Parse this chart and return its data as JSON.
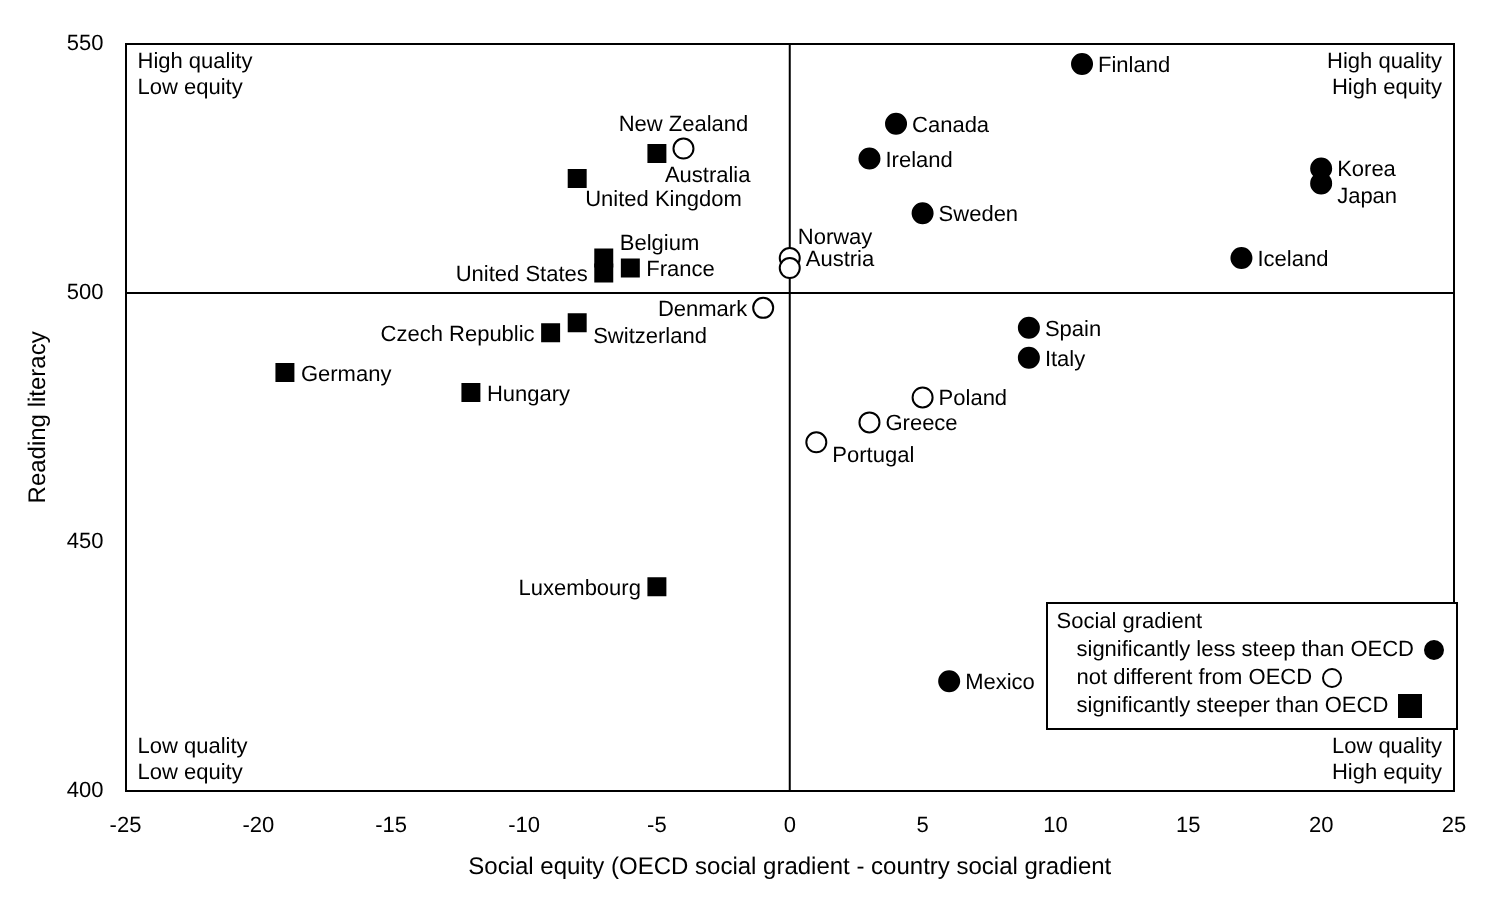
{
  "chart_data": {
    "type": "scatter",
    "xlabel": "Social equity (OECD social gradient - country social gradient",
    "ylabel": "Reading literacy",
    "legend_title": "Social gradient",
    "legend": "bottom right",
    "grid": false,
    "xlim": [
      -25,
      25
    ],
    "xticks": [
      -25,
      -20,
      -15,
      -10,
      -5,
      0,
      5,
      10,
      15,
      20,
      25
    ],
    "ylim": [
      400,
      550
    ],
    "yticks": [
      400,
      450,
      500,
      550
    ],
    "ref_lines": [
      {
        "axis": "x",
        "value": 0,
        "color": "#000000"
      },
      {
        "axis": "y",
        "value": 500,
        "color": "#000000"
      }
    ],
    "series": [
      {
        "name": "significantly less steep than OECD",
        "color": "#000000",
        "marker": "circle",
        "x": [
          11,
          4,
          3,
          5,
          20,
          20,
          17,
          9,
          9,
          6
        ],
        "values": [
          546,
          534,
          527,
          516,
          525,
          522,
          507,
          493,
          487,
          422
        ]
      },
      {
        "name": "not different from OECD",
        "color": "#ffffff",
        "marker": "circle",
        "x": [
          -4,
          0,
          0,
          -1,
          5,
          3,
          1
        ],
        "values": [
          529,
          507,
          505,
          497,
          479,
          474,
          470
        ]
      },
      {
        "name": "significantly steeper than OECD",
        "color": "#000000",
        "marker": "square",
        "x": [
          -5,
          -8,
          -7,
          -7,
          -6,
          -8,
          -9,
          -19,
          -12,
          -5
        ],
        "values": [
          528,
          523,
          507,
          504,
          505,
          494,
          492,
          484,
          480,
          441
        ]
      }
    ],
    "annotations": [
      "High quality\nLow equity",
      "High quality\nHigh equity",
      "Low quality\nLow equity",
      "Low quality\nHigh equity",
      {
        "text": "Finland",
        "x": 11,
        "y": 546
      },
      {
        "text": "Canada",
        "x": 4,
        "y": 534
      },
      {
        "text": "Ireland",
        "x": 3,
        "y": 527
      },
      {
        "text": "Sweden",
        "x": 5,
        "y": 516
      },
      {
        "text": "Korea",
        "x": 20,
        "y": 525
      },
      {
        "text": "Japan",
        "x": 20,
        "y": 522
      },
      {
        "text": "Iceland",
        "x": 17,
        "y": 507
      },
      {
        "text": "Spain",
        "x": 9,
        "y": 493
      },
      {
        "text": "Italy",
        "x": 9,
        "y": 487
      },
      {
        "text": "Mexico",
        "x": 6,
        "y": 422
      },
      {
        "text": "New Zealand",
        "x": -4,
        "y": 529
      },
      {
        "text": "Austria",
        "x": 0,
        "y": 507
      },
      {
        "text": "Norway",
        "x": 0,
        "y": 505
      },
      {
        "text": "Denmark",
        "x": -1,
        "y": 497
      },
      {
        "text": "Poland",
        "x": 5,
        "y": 479
      },
      {
        "text": "Greece",
        "x": 3,
        "y": 474
      },
      {
        "text": "Portugal",
        "x": 1,
        "y": 470
      },
      {
        "text": "Australia",
        "x": -5,
        "y": 528
      },
      {
        "text": "United Kingdom",
        "x": -8,
        "y": 523
      },
      {
        "text": "Belgium",
        "x": -7,
        "y": 507
      },
      {
        "text": "United States",
        "x": -7,
        "y": 504
      },
      {
        "text": "France",
        "x": -6,
        "y": 505
      },
      {
        "text": "Switzerland",
        "x": -8,
        "y": 494
      },
      {
        "text": "Czech Republic",
        "x": -9,
        "y": 492
      },
      {
        "text": "Germany",
        "x": -19,
        "y": 484
      },
      {
        "text": "Hungary",
        "x": -12,
        "y": 480
      },
      {
        "text": "Luxembourg",
        "x": -5,
        "y": 441
      }
    ]
  }
}
